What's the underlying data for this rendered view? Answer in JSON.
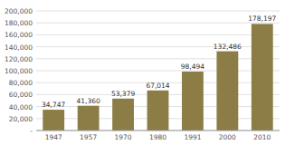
{
  "chart_data": {
    "type": "bar",
    "categories": [
      "1947",
      "1957",
      "1970",
      "1980",
      "1991",
      "2000",
      "2010"
    ],
    "values": [
      34747,
      41360,
      53379,
      67014,
      98494,
      132486,
      178197
    ],
    "value_labels": [
      "34,747",
      "41,360",
      "53,379",
      "67,014",
      "98,494",
      "132,486",
      "178,197"
    ],
    "data_labels": true,
    "color": "#8B7D45",
    "ylim": [
      0,
      200000
    ],
    "yticks": [
      {
        "value": 0,
        "label": "-"
      },
      {
        "value": 20000,
        "label": "20,000"
      },
      {
        "value": 40000,
        "label": "40,000"
      },
      {
        "value": 60000,
        "label": "60,000"
      },
      {
        "value": 80000,
        "label": "80,000"
      },
      {
        "value": 100000,
        "label": "100,000"
      },
      {
        "value": 120000,
        "label": "120,000"
      },
      {
        "value": 140000,
        "label": "140,000"
      },
      {
        "value": 160000,
        "label": "160,000"
      },
      {
        "value": 180000,
        "label": "180,000"
      },
      {
        "value": 200000,
        "label": "200,000"
      }
    ],
    "grid": true
  }
}
